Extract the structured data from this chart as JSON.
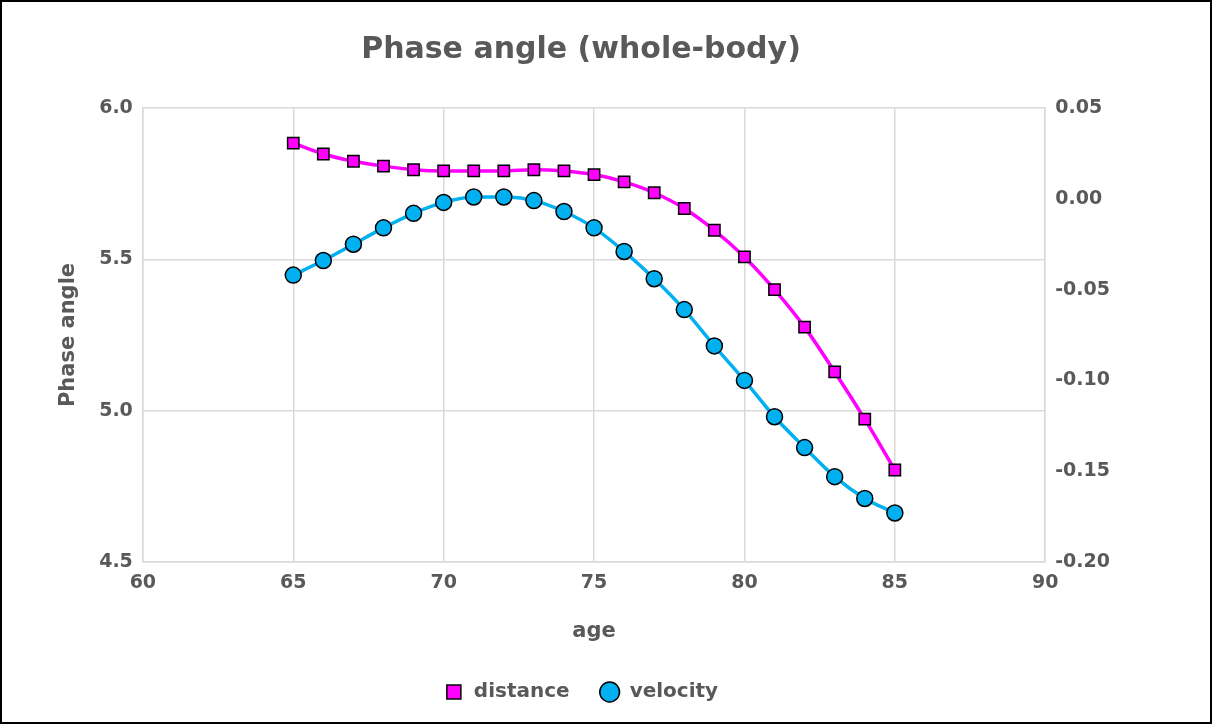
{
  "chart_data": {
    "type": "line",
    "title": "Phase angle (whole-body)",
    "xlabel": "age",
    "ylabel": "Phase angle",
    "x": [
      65,
      66,
      67,
      68,
      69,
      70,
      71,
      72,
      73,
      74,
      75,
      76,
      77,
      78,
      79,
      80,
      81,
      82,
      83,
      84,
      85
    ],
    "xlim": [
      60,
      90
    ],
    "xticks": [
      60,
      65,
      70,
      75,
      80,
      85,
      90
    ],
    "ylim": [
      4.5,
      6.0
    ],
    "yticks": [
      {
        "value": 4.5,
        "label": "4.5"
      },
      {
        "value": 5.0,
        "label": "5.0"
      },
      {
        "value": 5.5,
        "label": "5.5"
      },
      {
        "value": 6.0,
        "label": "6.0"
      }
    ],
    "y2lim": [
      -0.2,
      0.05
    ],
    "y2ticks": [
      {
        "value": -0.2,
        "label": "-0.20"
      },
      {
        "value": -0.15,
        "label": "-0.15"
      },
      {
        "value": -0.1,
        "label": "-0.10"
      },
      {
        "value": -0.05,
        "label": "-0.05"
      },
      {
        "value": 0,
        "label": "0.00"
      },
      {
        "value": 0.05,
        "label": "0.05"
      }
    ],
    "grid": true,
    "legend": "bottom",
    "series": [
      {
        "name": "distance",
        "color": "#ff00ff",
        "marker": "square",
        "values": [
          5.884,
          5.848,
          5.824,
          5.808,
          5.796,
          5.792,
          5.792,
          5.792,
          5.796,
          5.792,
          5.78,
          5.756,
          5.72,
          5.668,
          5.596,
          5.508,
          5.4,
          5.276,
          5.128,
          4.972,
          4.804
        ]
      },
      {
        "name": "velocity",
        "color": "#00b0f0",
        "marker": "circle",
        "axis": "y2",
        "values": [
          -0.042,
          -0.034,
          -0.025,
          -0.016,
          -0.008,
          -0.002,
          0.001,
          0.001,
          -0.001,
          -0.007,
          -0.016,
          -0.029,
          -0.044,
          -0.061,
          -0.081,
          -0.1,
          -0.12,
          -0.137,
          -0.153,
          -0.165,
          -0.173
        ]
      }
    ]
  }
}
